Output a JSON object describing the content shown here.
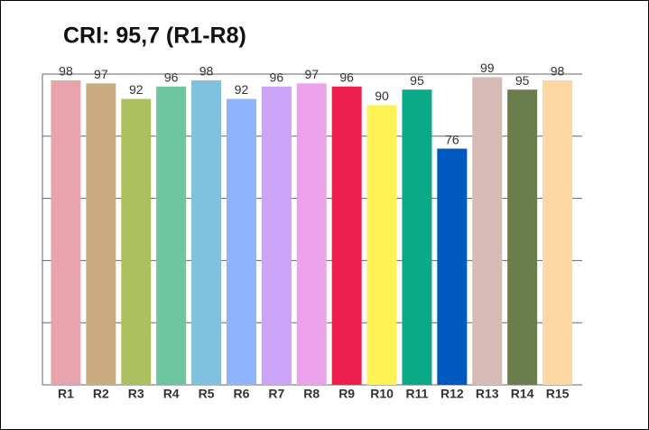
{
  "chart_data": {
    "type": "bar",
    "title": "CRI: 95,7 (R1-R8)",
    "categories": [
      "R1",
      "R2",
      "R3",
      "R4",
      "R5",
      "R6",
      "R7",
      "R8",
      "R9",
      "R10",
      "R11",
      "R12",
      "R13",
      "R14",
      "R15"
    ],
    "values": [
      98,
      97,
      92,
      96,
      98,
      92,
      96,
      97,
      96,
      90,
      95,
      76,
      99,
      95,
      98
    ],
    "colors": [
      "#e8a3ad",
      "#c9ad80",
      "#adc060",
      "#6dc6a0",
      "#7fc1df",
      "#90b3fd",
      "#cba3f7",
      "#eda3eb",
      "#ed1f4f",
      "#fef255",
      "#0aa987",
      "#0059bf",
      "#d8bbb7",
      "#6b7c4d",
      "#fdd8a5"
    ],
    "ylim": [
      0,
      100
    ],
    "yticks": [
      0,
      20,
      40,
      60,
      80,
      100
    ],
    "grid": true
  }
}
